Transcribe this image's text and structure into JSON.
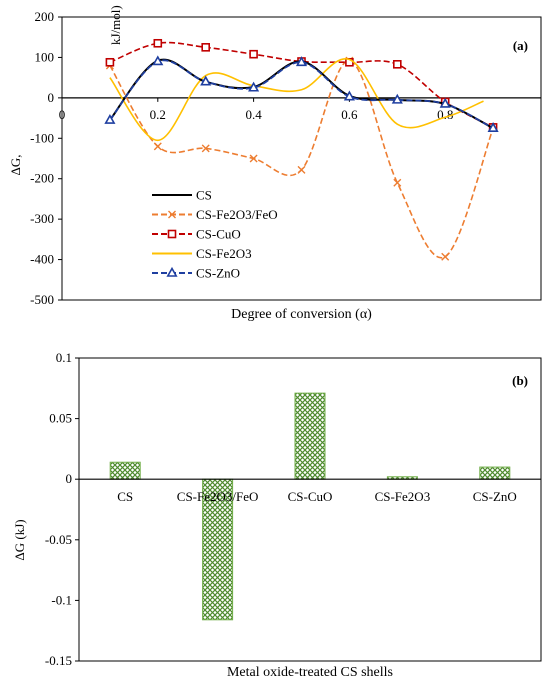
{
  "chart_data": [
    {
      "panel_label": "(a)",
      "type": "line",
      "ylabel_main": "ΔG,",
      "ylabel_unit": "kJ/mol)",
      "xlabel": "Degree of conversion (α)",
      "ylim": [
        -500,
        200
      ],
      "xlim": [
        0,
        1
      ],
      "yticks": [
        200,
        100,
        0,
        -100,
        -200,
        -300,
        -400,
        -500
      ],
      "xticks": [
        0,
        0.2,
        0.4,
        0.6,
        0.8
      ],
      "xtick_labels": [
        "0",
        "0.2",
        "0.4",
        "0.6",
        "0.8"
      ],
      "legend_position": "center-left",
      "series": [
        {
          "name": "CS",
          "color": "#000000",
          "dash": "solid",
          "marker": "none",
          "x": [
            0.1,
            0.2,
            0.3,
            0.4,
            0.5,
            0.6,
            0.7,
            0.8,
            0.9
          ],
          "y": [
            -55,
            92,
            40,
            27,
            90,
            5,
            -5,
            -15,
            -75
          ]
        },
        {
          "name": "CS-Fe2O3/FeO",
          "color": "#ED7D31",
          "dash": "dash",
          "marker": "x",
          "x": [
            0.1,
            0.2,
            0.3,
            0.4,
            0.5,
            0.6,
            0.7,
            0.8,
            0.9
          ],
          "y": [
            80,
            -120,
            -125,
            -150,
            -178,
            92,
            -210,
            -393,
            -75
          ]
        },
        {
          "name": "CS-CuO",
          "color": "#C00000",
          "dash": "dash",
          "marker": "square",
          "x": [
            0.1,
            0.2,
            0.3,
            0.4,
            0.5,
            0.6,
            0.7,
            0.8,
            0.9
          ],
          "y": [
            88,
            135,
            125,
            108,
            90,
            88,
            83,
            -10,
            -73
          ]
        },
        {
          "name": "CS-Fe2O3",
          "color": "#FFC000",
          "dash": "solid",
          "marker": "none",
          "x": [
            0.1,
            0.2,
            0.3,
            0.4,
            0.5,
            0.6,
            0.7,
            0.8,
            0.88
          ],
          "y": [
            50,
            -105,
            55,
            30,
            20,
            95,
            -65,
            -48,
            -8
          ]
        },
        {
          "name": "CS-ZnO",
          "color": "#1F3FA0",
          "dash": "dash",
          "marker": "triangle",
          "x": [
            0.1,
            0.2,
            0.3,
            0.4,
            0.5,
            0.6,
            0.7,
            0.8,
            0.9
          ],
          "y": [
            -55,
            90,
            40,
            25,
            88,
            3,
            -5,
            -15,
            -75
          ]
        }
      ]
    },
    {
      "panel_label": "(b)",
      "type": "bar",
      "ylabel": "ΔG (kJ)",
      "xlabel": "Metal oxide-treated CS shells",
      "ylim": [
        -0.15,
        0.1
      ],
      "yticks": [
        0.1,
        0.05,
        0,
        -0.05,
        -0.1,
        -0.15
      ],
      "ytick_labels": [
        "0.1",
        "0.05",
        "0",
        "-0.05",
        "-0.1",
        "-0.15"
      ],
      "categories": [
        "CS",
        "CS-Fe2O3/FeO",
        "CS-CuO",
        "CS-Fe2O3",
        "CS-ZnO"
      ],
      "values": [
        0.014,
        -0.116,
        0.071,
        0.002,
        0.01
      ],
      "bar_color": "#70AD47"
    }
  ]
}
